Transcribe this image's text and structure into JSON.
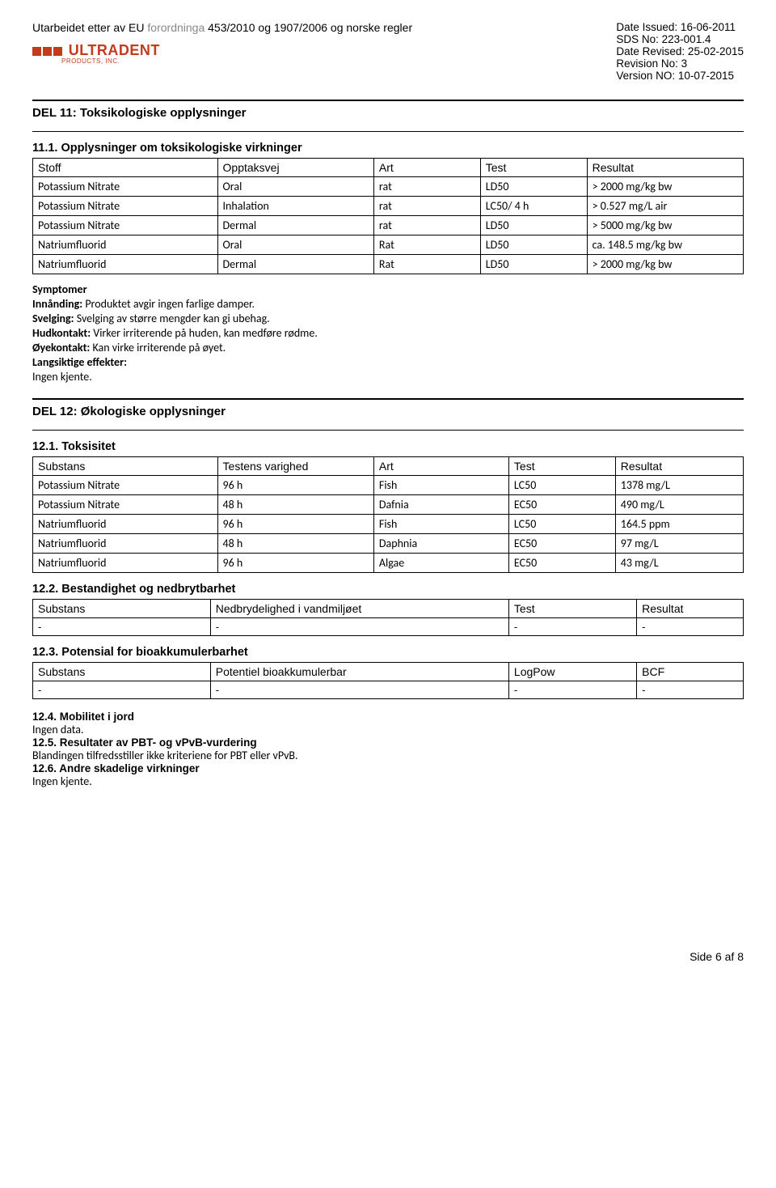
{
  "header": {
    "reg_prefix": "Utarbeidet etter av EU ",
    "reg_gray": "forordninga",
    "reg_suffix": " 453/2010 og 1907/2006 og norske regler",
    "date_issued": "Date Issued: 16-06-2011",
    "sds_no": "SDS No: 223-001.4",
    "date_revised": "Date Revised: 25-02-2015",
    "revision_no": "Revision No: 3",
    "version_no": "Version NO: 10-07-2015",
    "logo_name": "ULTRADENT",
    "logo_sub": "PRODUCTS, INC."
  },
  "del11": {
    "title": "DEL 11: Toksikologiske opplysninger",
    "sub": "11.1. Opplysninger om toksikologiske virkninger",
    "table": {
      "headers": [
        "Stoff",
        "Opptaksvej",
        "Art",
        "Test",
        "Resultat"
      ],
      "col_widths": [
        "26%",
        "22%",
        "15%",
        "15%",
        "22%"
      ],
      "rows": [
        [
          "Potassium Nitrate",
          "Oral",
          "rat",
          "LD50",
          "> 2000 mg/kg bw"
        ],
        [
          "Potassium Nitrate",
          "Inhalation",
          "rat",
          "LC50/ 4 h",
          "> 0.527 mg/L air"
        ],
        [
          "Potassium Nitrate",
          "Dermal",
          "rat",
          "LD50",
          "> 5000 mg/kg bw"
        ],
        [
          "Natriumfluorid",
          "Oral",
          "Rat",
          "LD50",
          "ca. 148.5 mg/kg bw"
        ],
        [
          "Natriumfluorid",
          "Dermal",
          "Rat",
          "LD50",
          "> 2000 mg/kg bw"
        ]
      ]
    },
    "symptomer_title": "Symptomer",
    "lines": [
      {
        "label": "Innånding:",
        "text": " Produktet avgir ingen farlige damper."
      },
      {
        "label": "Svelging:",
        "text": " Svelging av større mengder kan gi ubehag."
      },
      {
        "label": "Hudkontakt:",
        "text": " Virker irriterende på huden, kan medføre rødme."
      },
      {
        "label": "Øyekontakt:",
        "text": " Kan virke irriterende på øyet."
      }
    ],
    "lang_label": "Langsiktige effekter:",
    "lang_text": "Ingen kjente."
  },
  "del12": {
    "title": "DEL 12: Økologiske opplysninger",
    "toks": {
      "title": "12.1. Toksisitet",
      "headers": [
        "Substans",
        "Testens varighed",
        "Art",
        "Test",
        "Resultat"
      ],
      "col_widths": [
        "26%",
        "22%",
        "19%",
        "15%",
        "18%"
      ],
      "rows": [
        [
          "Potassium Nitrate",
          "96 h",
          "Fish",
          "LC50",
          "1378 mg/L"
        ],
        [
          "Potassium Nitrate",
          "48 h",
          "Dafnia",
          "EC50",
          "490 mg/L"
        ],
        [
          "Natriumfluorid",
          "96 h",
          "Fish",
          "LC50",
          "164.5 ppm"
        ],
        [
          "Natriumfluorid",
          "48 h",
          "Daphnia",
          "EC50",
          "97 mg/L"
        ],
        [
          "Natriumfluorid",
          "96 h",
          "Algae",
          "EC50",
          "43 mg/L"
        ]
      ]
    },
    "best": {
      "title": "12.2. Bestandighet og nedbrytbarhet",
      "headers": [
        "Substans",
        "Nedbrydelighed i vandmiljøet",
        "Test",
        "Resultat"
      ],
      "col_widths": [
        "25%",
        "42%",
        "18%",
        "15%"
      ],
      "rows": [
        [
          "-",
          "-",
          "-",
          "-"
        ]
      ]
    },
    "bio": {
      "title": "12.3. Potensial for bioakkumulerbarhet",
      "headers": [
        "Substans",
        "Potentiel bioakkumulerbar",
        "LogPow",
        "BCF"
      ],
      "col_widths": [
        "25%",
        "42%",
        "18%",
        "15%"
      ],
      "rows": [
        [
          "-",
          "-",
          "-",
          "-"
        ]
      ]
    },
    "s124_title": "12.4. Mobilitet i jord",
    "s124_text": "Ingen data.",
    "s125_title": "12.5. Resultater av PBT- og vPvB-vurdering",
    "s125_text": "Blandingen tilfredsstiller ikke kriteriene for PBT eller vPvB.",
    "s126_title": "12.6. Andre skadelige virkninger",
    "s126_text": "Ingen kjente."
  },
  "footer": "Side 6 af 8"
}
